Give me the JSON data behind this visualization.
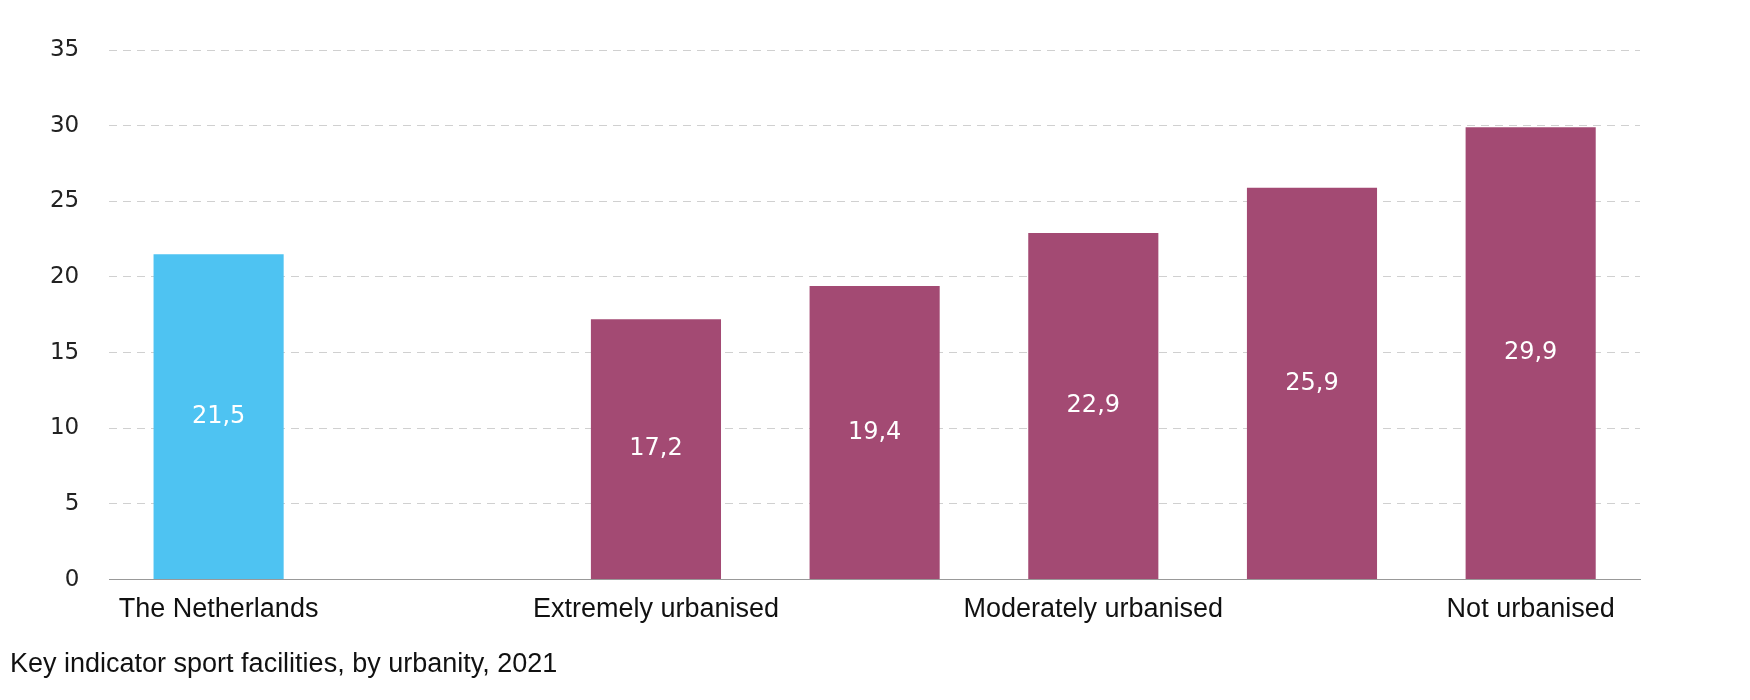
{
  "chart_data": {
    "type": "bar",
    "categories": [
      "The Netherlands",
      null,
      "Extremely urbanised",
      null,
      "Moderately urbanised",
      null,
      "Not urbanised"
    ],
    "values": [
      21.5,
      null,
      17.2,
      19.4,
      22.9,
      25.9,
      29.9
    ],
    "colors": [
      "#4ec3f2",
      "#a34a73",
      "#a34a73",
      "#a34a73",
      "#a34a73",
      "#a34a73",
      "#a34a73"
    ],
    "value_labels": [
      "21,5",
      null,
      "17,2",
      "19,4",
      "22,9",
      "25,9",
      "29,9"
    ],
    "ylim": [
      0,
      35
    ],
    "yticks": [
      0,
      5,
      10,
      15,
      20,
      25,
      30,
      35
    ],
    "grid": "y",
    "legend": false,
    "annotations": [
      "Key indicator sport facilities, by urbanity, 2021"
    ]
  }
}
